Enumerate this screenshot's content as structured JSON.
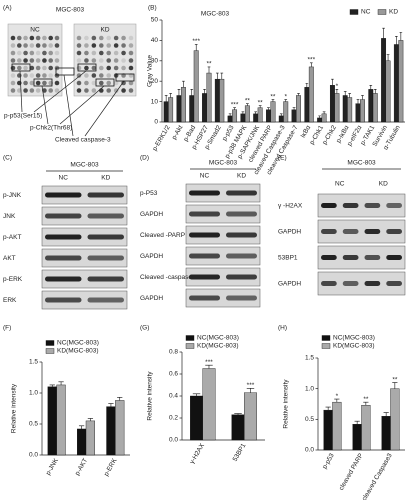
{
  "blots": {
    "A": {
      "panel_label": "(A)",
      "title": "MGC-803",
      "lanes": [
        "NC",
        "KD"
      ],
      "labels": [
        "p-p53(Ser15)",
        "p-Chk2(Thr68)",
        "Cleaved caspase-3"
      ]
    },
    "C": {
      "panel_label": "(C)",
      "title": "MGC-803",
      "lanes": [
        "NC",
        "KD"
      ],
      "rows": [
        "p-JNK",
        "JNK",
        "p-AKT",
        "AKT",
        "p-ERK",
        "ERK"
      ]
    },
    "D": {
      "panel_label": "(D)",
      "title": "MGC-803",
      "lanes": [
        "NC",
        "KD"
      ],
      "rows": [
        "p-P53",
        "GAPDH",
        "Cleaved -PARP",
        "GAPDH",
        "Cleaved -caspase3",
        "GAPDH"
      ]
    },
    "E": {
      "panel_label": "(E)",
      "title": "MGC-803",
      "lanes": [
        "NC",
        "KD"
      ],
      "rows": [
        "γ -H2AX",
        "GAPDH",
        "53BP1",
        "GAPDH"
      ]
    }
  },
  "chart_data": [
    {
      "type": "bar",
      "panel_label": "(B)",
      "title": "MGC-803",
      "y_label": "Gray Value",
      "categories": [
        "p-ERK1/2",
        "p-Akt",
        "p-Bad",
        "p-HSP27",
        "p-Smad2",
        "p-p53",
        "p-p38 MAPK",
        "p-SAPK/JNK",
        "cleaved PARP",
        "cleaved Caspase-3",
        "cleaved Caspase-7",
        "IκBα",
        "p-Chk1",
        "p-Chk2",
        "p-IκBα",
        "p-eIF2α",
        "p-TAK1",
        "Survivin",
        "α-Tubulin"
      ],
      "series": [
        {
          "name": "NC",
          "color": "#222222",
          "values": [
            10,
            13,
            13,
            14,
            21,
            3,
            4,
            4,
            6,
            3,
            6,
            17,
            2,
            18,
            13,
            9,
            16,
            41,
            38
          ],
          "errors": [
            3,
            3,
            3,
            2,
            3,
            1,
            1,
            1,
            1,
            1,
            1,
            2,
            1,
            3,
            2,
            2,
            2,
            5,
            4
          ]
        },
        {
          "name": "KD",
          "color": "#999999",
          "values": [
            12,
            17,
            35,
            24,
            21,
            6,
            8,
            7,
            10,
            10,
            13,
            27,
            4,
            14,
            12,
            11,
            14,
            30,
            40
          ],
          "errors": [
            2,
            3,
            3,
            3,
            3,
            1,
            1,
            1,
            1,
            1,
            1,
            2,
            1,
            2,
            2,
            2,
            2,
            3,
            4
          ],
          "significance": [
            null,
            null,
            "***",
            "**",
            null,
            "***",
            "**",
            "**",
            "**",
            "*",
            null,
            "***",
            null,
            "*",
            null,
            null,
            null,
            null,
            null
          ]
        }
      ],
      "ylim": [
        0,
        50
      ],
      "yticks": [
        0,
        10,
        20,
        30,
        40,
        50
      ],
      "legend": "upper right"
    },
    {
      "type": "bar",
      "panel_label": "(F)",
      "y_label": "Relative intensity",
      "categories": [
        "p-JNK",
        "p-AKT",
        "p-ERK"
      ],
      "series": [
        {
          "name": "NC(MGC-803)",
          "color": "#111111",
          "values": [
            1.1,
            0.42,
            0.78
          ],
          "errors": [
            0.03,
            0.05,
            0.05
          ]
        },
        {
          "name": "KD(MGC-803)",
          "color": "#aaaaaa",
          "values": [
            1.13,
            0.55,
            0.88
          ],
          "errors": [
            0.05,
            0.04,
            0.05
          ]
        }
      ],
      "ylim": [
        0,
        1.5
      ],
      "yticks": [
        {
          "value": 0,
          "label": "0.0"
        },
        0.5,
        {
          "value": 1,
          "label": "1.0"
        },
        1.5
      ],
      "legend": "upper left"
    },
    {
      "type": "bar",
      "panel_label": "(G)",
      "y_label": "Relative intensity",
      "categories": [
        "γ-H2AX",
        "53BP1"
      ],
      "series": [
        {
          "name": "NC(MGC-803)",
          "color": "#111111",
          "values": [
            0.4,
            0.23
          ],
          "errors": [
            0.02,
            0.01
          ]
        },
        {
          "name": "KD(MGC-803)",
          "color": "#aaaaaa",
          "values": [
            0.65,
            0.43
          ],
          "errors": [
            0.03,
            0.04
          ],
          "significance": [
            "***",
            "***"
          ]
        }
      ],
      "ylim": [
        0,
        0.8
      ],
      "yticks": [
        {
          "value": 0,
          "label": "0.0"
        },
        0.2,
        0.4,
        0.6,
        0.8
      ],
      "legend": "upper left"
    },
    {
      "type": "bar",
      "panel_label": "(H)",
      "y_label": "Relative intensity",
      "categories": [
        "p-p53",
        "cleaved PARP",
        "cleaved Caspase3"
      ],
      "series": [
        {
          "name": "NC(MGC-803)",
          "color": "#111111",
          "values": [
            0.65,
            0.42,
            0.55
          ],
          "errors": [
            0.05,
            0.05,
            0.06
          ]
        },
        {
          "name": "KD(MGC-803)",
          "color": "#aaaaaa",
          "values": [
            0.78,
            0.73,
            1.0
          ],
          "errors": [
            0.05,
            0.05,
            0.1
          ],
          "significance": [
            "*",
            "**",
            "**"
          ]
        }
      ],
      "ylim": [
        0,
        1.5
      ],
      "yticks": [
        {
          "value": 0,
          "label": "0.0"
        },
        0.5,
        {
          "value": 1,
          "label": "1.0"
        },
        1.5
      ],
      "legend": "upper left"
    }
  ]
}
